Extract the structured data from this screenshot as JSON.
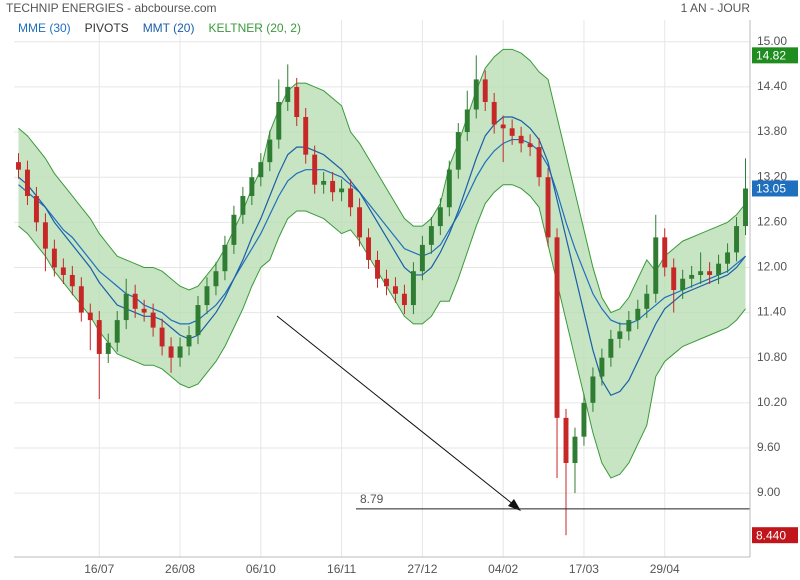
{
  "chart_data": {
    "type": "candlestick",
    "title": "TECHNIP ENERGIES - abcbourse.com",
    "subtitle": "1 AN - JOUR",
    "categories": [
      null,
      null,
      null,
      null,
      null,
      null,
      null,
      null,
      null,
      "16/07",
      null,
      null,
      null,
      null,
      null,
      null,
      null,
      null,
      "26/08",
      null,
      null,
      null,
      null,
      null,
      null,
      null,
      null,
      "06/10",
      null,
      null,
      null,
      null,
      null,
      null,
      null,
      null,
      "16/11",
      null,
      null,
      null,
      null,
      null,
      null,
      null,
      null,
      "27/12",
      null,
      null,
      null,
      null,
      null,
      null,
      null,
      null,
      "04/02",
      null,
      null,
      null,
      null,
      null,
      null,
      null,
      null,
      "17/03",
      null,
      null,
      null,
      null,
      null,
      null,
      null,
      null,
      "29/04",
      null,
      null,
      null,
      null,
      null,
      null,
      null,
      null,
      null
    ],
    "open": [
      13.4,
      13.3,
      12.95,
      12.6,
      12.25,
      12.0,
      11.9,
      11.75,
      11.4,
      11.3,
      10.85,
      11.0,
      11.3,
      11.65,
      11.45,
      11.4,
      11.2,
      10.95,
      10.8,
      10.95,
      11.1,
      11.5,
      11.75,
      11.95,
      12.3,
      12.7,
      12.95,
      13.2,
      13.4,
      13.7,
      14.2,
      14.4,
      14.0,
      13.5,
      13.1,
      13.15,
      13.0,
      13.05,
      12.8,
      12.4,
      12.1,
      11.85,
      11.75,
      11.65,
      11.5,
      11.95,
      12.3,
      12.55,
      12.8,
      13.3,
      13.8,
      14.1,
      14.5,
      14.2,
      13.9,
      13.85,
      13.75,
      13.65,
      13.6,
      13.2,
      12.4,
      10.0,
      9.4,
      9.75,
      10.2,
      10.55,
      10.8,
      11.05,
      11.15,
      11.3,
      11.45,
      11.65,
      12.4,
      12.0,
      11.7,
      11.85,
      11.9,
      11.95,
      11.9,
      12.05,
      12.2,
      12.55
    ],
    "high": [
      13.52,
      13.42,
      13.07,
      12.72,
      12.37,
      12.12,
      12.02,
      11.87,
      11.52,
      11.42,
      11.12,
      11.42,
      11.85,
      11.77,
      11.57,
      11.52,
      11.32,
      11.07,
      11.07,
      11.22,
      11.62,
      11.87,
      12.07,
      12.42,
      12.82,
      13.07,
      13.32,
      13.52,
      13.82,
      14.5,
      14.7,
      14.52,
      14.12,
      13.62,
      13.27,
      13.27,
      13.17,
      13.17,
      12.92,
      12.52,
      12.22,
      11.97,
      11.87,
      11.77,
      12.07,
      12.42,
      12.67,
      12.92,
      13.42,
      13.92,
      14.35,
      14.82,
      14.62,
      14.32,
      14.02,
      13.97,
      13.87,
      13.77,
      13.72,
      13.32,
      12.52,
      10.12,
      9.87,
      10.32,
      10.67,
      10.92,
      11.17,
      11.27,
      11.42,
      11.57,
      11.77,
      12.7,
      12.52,
      12.12,
      11.97,
      12.02,
      12.2,
      12.07,
      12.17,
      12.32,
      12.67,
      13.45
    ],
    "low": [
      13.18,
      12.83,
      12.48,
      11.95,
      11.88,
      11.78,
      11.63,
      11.28,
      10.9,
      10.25,
      10.73,
      10.88,
      11.18,
      11.33,
      11.28,
      11.08,
      10.83,
      10.6,
      10.68,
      10.83,
      10.98,
      11.38,
      11.63,
      11.83,
      12.18,
      12.58,
      12.83,
      13.08,
      13.28,
      13.58,
      14.08,
      13.88,
      13.38,
      12.98,
      12.98,
      12.88,
      12.88,
      12.68,
      12.28,
      11.98,
      11.73,
      11.63,
      11.53,
      11.38,
      11.38,
      11.83,
      12.18,
      12.43,
      12.68,
      13.18,
      13.68,
      13.98,
      14.08,
      13.78,
      13.4,
      13.63,
      13.53,
      13.48,
      13.08,
      12.28,
      9.2,
      8.44,
      9.0,
      9.63,
      10.08,
      10.43,
      10.68,
      10.93,
      11.03,
      11.18,
      11.33,
      11.53,
      11.88,
      11.4,
      11.58,
      11.73,
      11.78,
      11.78,
      11.78,
      11.93,
      12.08,
      12.43
    ],
    "close": [
      13.3,
      12.95,
      12.6,
      12.25,
      12.0,
      11.9,
      11.75,
      11.4,
      11.3,
      10.85,
      11.0,
      11.3,
      11.65,
      11.45,
      11.4,
      11.2,
      10.95,
      10.8,
      10.95,
      11.1,
      11.5,
      11.75,
      11.95,
      12.3,
      12.7,
      12.95,
      13.2,
      13.4,
      13.7,
      14.2,
      14.4,
      14.0,
      13.5,
      13.1,
      13.15,
      13.0,
      13.05,
      12.8,
      12.4,
      12.1,
      11.85,
      11.75,
      11.65,
      11.5,
      11.95,
      12.3,
      12.55,
      12.8,
      13.3,
      13.8,
      14.1,
      14.5,
      14.2,
      13.9,
      13.85,
      13.75,
      13.65,
      13.6,
      13.2,
      12.4,
      10.0,
      9.4,
      9.75,
      10.2,
      10.55,
      10.8,
      11.05,
      11.15,
      11.3,
      11.45,
      11.65,
      12.4,
      12.0,
      11.7,
      11.85,
      11.9,
      11.95,
      11.9,
      12.05,
      12.2,
      12.55,
      13.05
    ],
    "up_color": "#2e7d32",
    "down_color": "#c62828",
    "series": [
      {
        "name": "MME (30)",
        "color": "#1f6fbf",
        "values": [
          13.1,
          13.0,
          12.9,
          12.8,
          12.65,
          12.5,
          12.4,
          12.25,
          12.1,
          11.95,
          11.85,
          11.75,
          11.65,
          11.6,
          11.5,
          11.45,
          11.4,
          11.3,
          11.25,
          11.25,
          11.3,
          11.4,
          11.5,
          11.65,
          11.85,
          12.05,
          12.25,
          12.45,
          12.7,
          12.95,
          13.15,
          13.25,
          13.3,
          13.3,
          13.3,
          13.25,
          13.2,
          13.1,
          13.0,
          12.85,
          12.7,
          12.55,
          12.4,
          12.25,
          12.2,
          12.15,
          12.2,
          12.3,
          12.5,
          12.7,
          12.95,
          13.2,
          13.4,
          13.55,
          13.65,
          13.7,
          13.7,
          13.65,
          13.55,
          13.35,
          13.0,
          12.6,
          12.25,
          11.95,
          11.65,
          11.45,
          11.3,
          11.25,
          11.25,
          11.3,
          11.4,
          11.5,
          11.6,
          11.65,
          11.7,
          11.75,
          11.8,
          11.85,
          11.9,
          11.95,
          12.05,
          12.15
        ]
      },
      {
        "name": "MMT (20)",
        "color": "#1a5fa8",
        "values": [
          13.2,
          13.1,
          12.95,
          12.8,
          12.6,
          12.45,
          12.3,
          12.15,
          12.0,
          11.8,
          11.65,
          11.5,
          11.45,
          11.4,
          11.35,
          11.35,
          11.3,
          11.2,
          11.1,
          11.05,
          11.1,
          11.25,
          11.4,
          11.6,
          11.85,
          12.1,
          12.4,
          12.65,
          12.95,
          13.25,
          13.5,
          13.6,
          13.6,
          13.55,
          13.5,
          13.4,
          13.3,
          13.15,
          13.0,
          12.8,
          12.6,
          12.4,
          12.2,
          12.0,
          11.9,
          11.9,
          12.0,
          12.2,
          12.45,
          12.75,
          13.1,
          13.45,
          13.75,
          13.9,
          14.0,
          14.0,
          13.95,
          13.85,
          13.7,
          13.4,
          12.9,
          12.4,
          11.9,
          11.4,
          10.9,
          10.5,
          10.3,
          10.35,
          10.5,
          10.75,
          11.0,
          11.25,
          11.45,
          11.55,
          11.65,
          11.7,
          11.75,
          11.8,
          11.85,
          11.9,
          12.0,
          12.15
        ]
      }
    ],
    "keltner": {
      "name": "KELTNER (20, 2)",
      "color": "#3a9a3a",
      "fill": "#b9deb4",
      "upper": [
        13.85,
        13.75,
        13.6,
        13.45,
        13.25,
        13.1,
        12.95,
        12.8,
        12.65,
        12.45,
        12.3,
        12.15,
        12.1,
        12.05,
        12.0,
        12.0,
        11.95,
        11.85,
        11.75,
        11.7,
        11.75,
        11.9,
        12.05,
        12.25,
        12.5,
        12.75,
        13.05,
        13.3,
        13.8,
        14.1,
        14.35,
        14.45,
        14.45,
        14.4,
        14.35,
        14.25,
        14.15,
        13.8,
        13.65,
        13.45,
        13.25,
        13.05,
        12.85,
        12.65,
        12.55,
        12.55,
        12.65,
        12.85,
        13.35,
        13.65,
        14.0,
        14.35,
        14.65,
        14.8,
        14.9,
        14.9,
        14.85,
        14.75,
        14.6,
        14.5,
        14.0,
        13.5,
        13.0,
        12.5,
        12.0,
        11.6,
        11.4,
        11.45,
        11.6,
        11.85,
        12.1,
        11.95,
        12.15,
        12.25,
        12.35,
        12.4,
        12.45,
        12.5,
        12.55,
        12.6,
        12.7,
        12.85
      ],
      "lower": [
        12.55,
        12.45,
        12.3,
        12.15,
        11.95,
        11.8,
        11.65,
        11.5,
        11.35,
        11.15,
        11.0,
        10.85,
        10.8,
        10.75,
        10.7,
        10.7,
        10.65,
        10.55,
        10.45,
        10.4,
        10.45,
        10.6,
        10.75,
        10.95,
        11.2,
        11.45,
        11.75,
        12.0,
        12.1,
        12.4,
        12.65,
        12.75,
        12.75,
        12.7,
        12.65,
        12.55,
        12.45,
        12.5,
        12.35,
        12.15,
        11.95,
        11.75,
        11.55,
        11.35,
        11.25,
        11.25,
        11.35,
        11.55,
        11.55,
        11.85,
        12.2,
        12.55,
        12.85,
        13.0,
        13.1,
        13.1,
        13.05,
        12.95,
        12.8,
        12.3,
        11.8,
        11.3,
        10.8,
        10.3,
        9.8,
        9.4,
        9.2,
        9.25,
        9.4,
        9.65,
        9.9,
        10.55,
        10.75,
        10.85,
        10.95,
        11.0,
        11.05,
        11.1,
        11.15,
        11.2,
        11.3,
        11.45
      ]
    },
    "pivot": {
      "name": "PIVOTS",
      "value": 8.79,
      "color": "#222222"
    },
    "price_tags": [
      {
        "value": 14.82,
        "color": "#1e8c1e"
      },
      {
        "value": 13.05,
        "color": "#1f6fbf"
      },
      {
        "value": 8.44,
        "label": "8.440",
        "color": "#c0161b"
      }
    ],
    "ylim": [
      8.15,
      15.29
    ],
    "yticks": [
      {
        "value": 15,
        "label": "15.00"
      },
      {
        "value": 14.4,
        "label": "14.40"
      },
      {
        "value": 13.8,
        "label": "13.80"
      },
      {
        "value": 13.2,
        "label": "13.20"
      },
      {
        "value": 12.6,
        "label": "12.60"
      },
      {
        "value": 12,
        "label": "12.00"
      },
      {
        "value": 11.4,
        "label": "11.40"
      },
      {
        "value": 10.8,
        "label": "10.80"
      },
      {
        "value": 10.2,
        "label": "10.20"
      },
      {
        "value": 9.6,
        "label": "9.60"
      },
      {
        "value": 9,
        "label": "9.00"
      }
    ],
    "grid": true
  }
}
